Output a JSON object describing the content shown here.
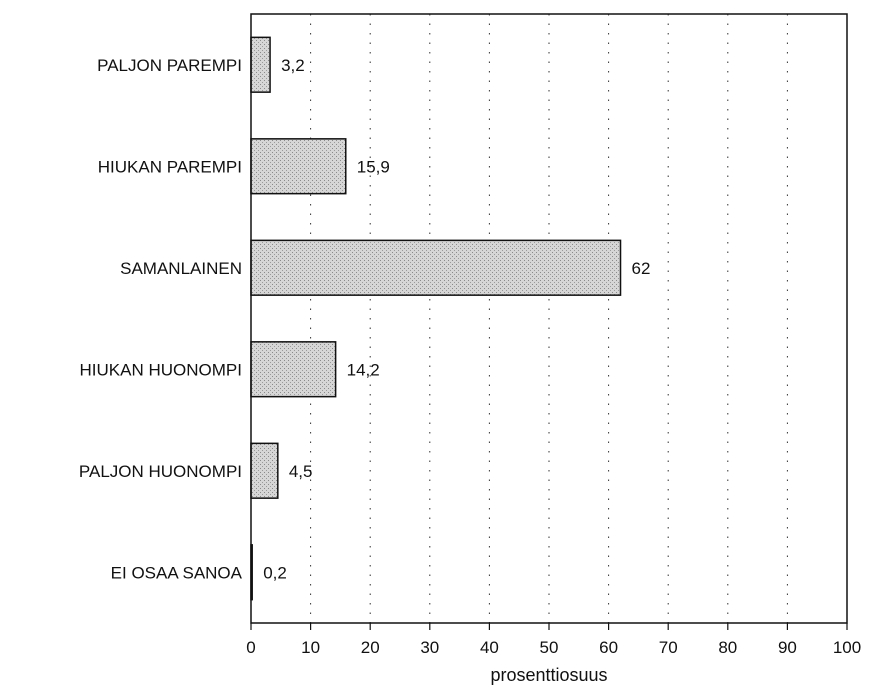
{
  "chart_data": {
    "type": "bar",
    "orientation": "horizontal",
    "categories": [
      "PALJON PAREMPI",
      "HIUKAN PAREMPI",
      "SAMANLAINEN",
      "HIUKAN HUONOMPI",
      "PALJON HUONOMPI",
      "EI OSAA SANOA"
    ],
    "values": [
      3.2,
      15.9,
      62,
      14.2,
      4.5,
      0.2
    ],
    "value_labels": [
      "3,2",
      "15,9",
      "62",
      "14,2",
      "4,5",
      "0,2"
    ],
    "xlabel": "prosenttiosuus",
    "ylabel": "",
    "title": "",
    "xlim": [
      0,
      100
    ],
    "xticks": [
      "0",
      "10",
      "20",
      "30",
      "40",
      "50",
      "60",
      "70",
      "80",
      "90",
      "100"
    ],
    "grid": "vertical dotted",
    "bar_fill": "#cfcfcf",
    "bar_stroke": "#111111"
  }
}
